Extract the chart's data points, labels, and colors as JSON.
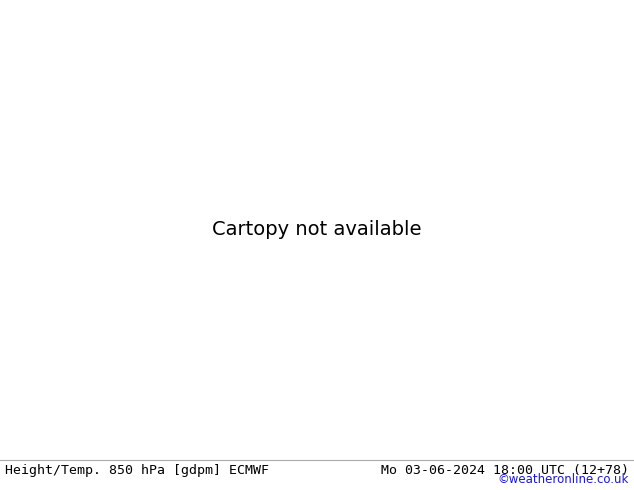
{
  "title_left": "Height/Temp. 850 hPa [gdpm] ECMWF",
  "title_right": "Mo 03-06-2024 18:00 UTC (12+78)",
  "credit": "©weatheronline.co.uk",
  "credit_color": "#1a1acc",
  "title_fontsize": 9.5,
  "credit_fontsize": 8.5,
  "figsize": [
    6.34,
    4.9
  ],
  "dpi": 100,
  "map_extent": [
    -28,
    45,
    28,
    72
  ],
  "sea_color": "#d2d2d2",
  "land_green": "#c8e89a",
  "land_gray": "#b4b4b4",
  "border_color": "#888888",
  "black_contour_lw": 2.2,
  "thick_contour_lw": 3.0,
  "temp_contour_lw": 1.6,
  "cyan_color": "#00b4cc",
  "orange_color": "#ff8c00",
  "red_color": "#dd1100",
  "magenta_color": "#cc00aa",
  "green_color": "#88bb00",
  "black_color": "#000000"
}
